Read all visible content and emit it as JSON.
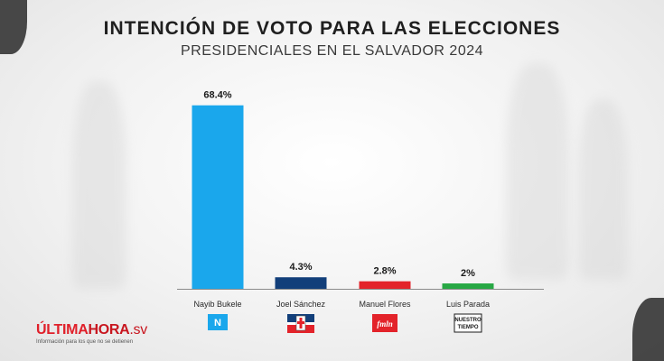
{
  "header": {
    "title": "INTENCIÓN DE VOTO PARA LAS ELECCIONES",
    "subtitle": "PRESIDENCIALES EN EL SALVADOR 2024"
  },
  "branding": {
    "name_part1": "ÚLTIMA",
    "name_part2": "HORA",
    "name_part3": ".sv",
    "tagline": "Información para los que no se detienen"
  },
  "chart_data": {
    "type": "bar",
    "categories": [
      "Nayib Bukele",
      "Joel Sánchez",
      "Manuel Flores",
      "Luis Parada"
    ],
    "values": [
      68.4,
      4.3,
      2.8,
      2
    ],
    "data_labels": [
      "68.4%",
      "4.3%",
      "2.8%",
      "2%"
    ],
    "colors": [
      "#1aa7ec",
      "#123f7a",
      "#e3232a",
      "#27a844"
    ],
    "party_logos": [
      {
        "icon": "nuevas-ideas-logo",
        "text": "N",
        "color": "#1aa7ec"
      },
      {
        "icon": "arena-logo",
        "text": "",
        "color": "#123f7a"
      },
      {
        "icon": "fmln-logo",
        "text": "fmln",
        "color": "#e3232a"
      },
      {
        "icon": "nuestro-tiempo-logo",
        "text": "NUESTRO TIEMPO",
        "color": "#1b1b1b"
      }
    ],
    "ylim": [
      0,
      72
    ],
    "grid": false,
    "legend": "none"
  }
}
